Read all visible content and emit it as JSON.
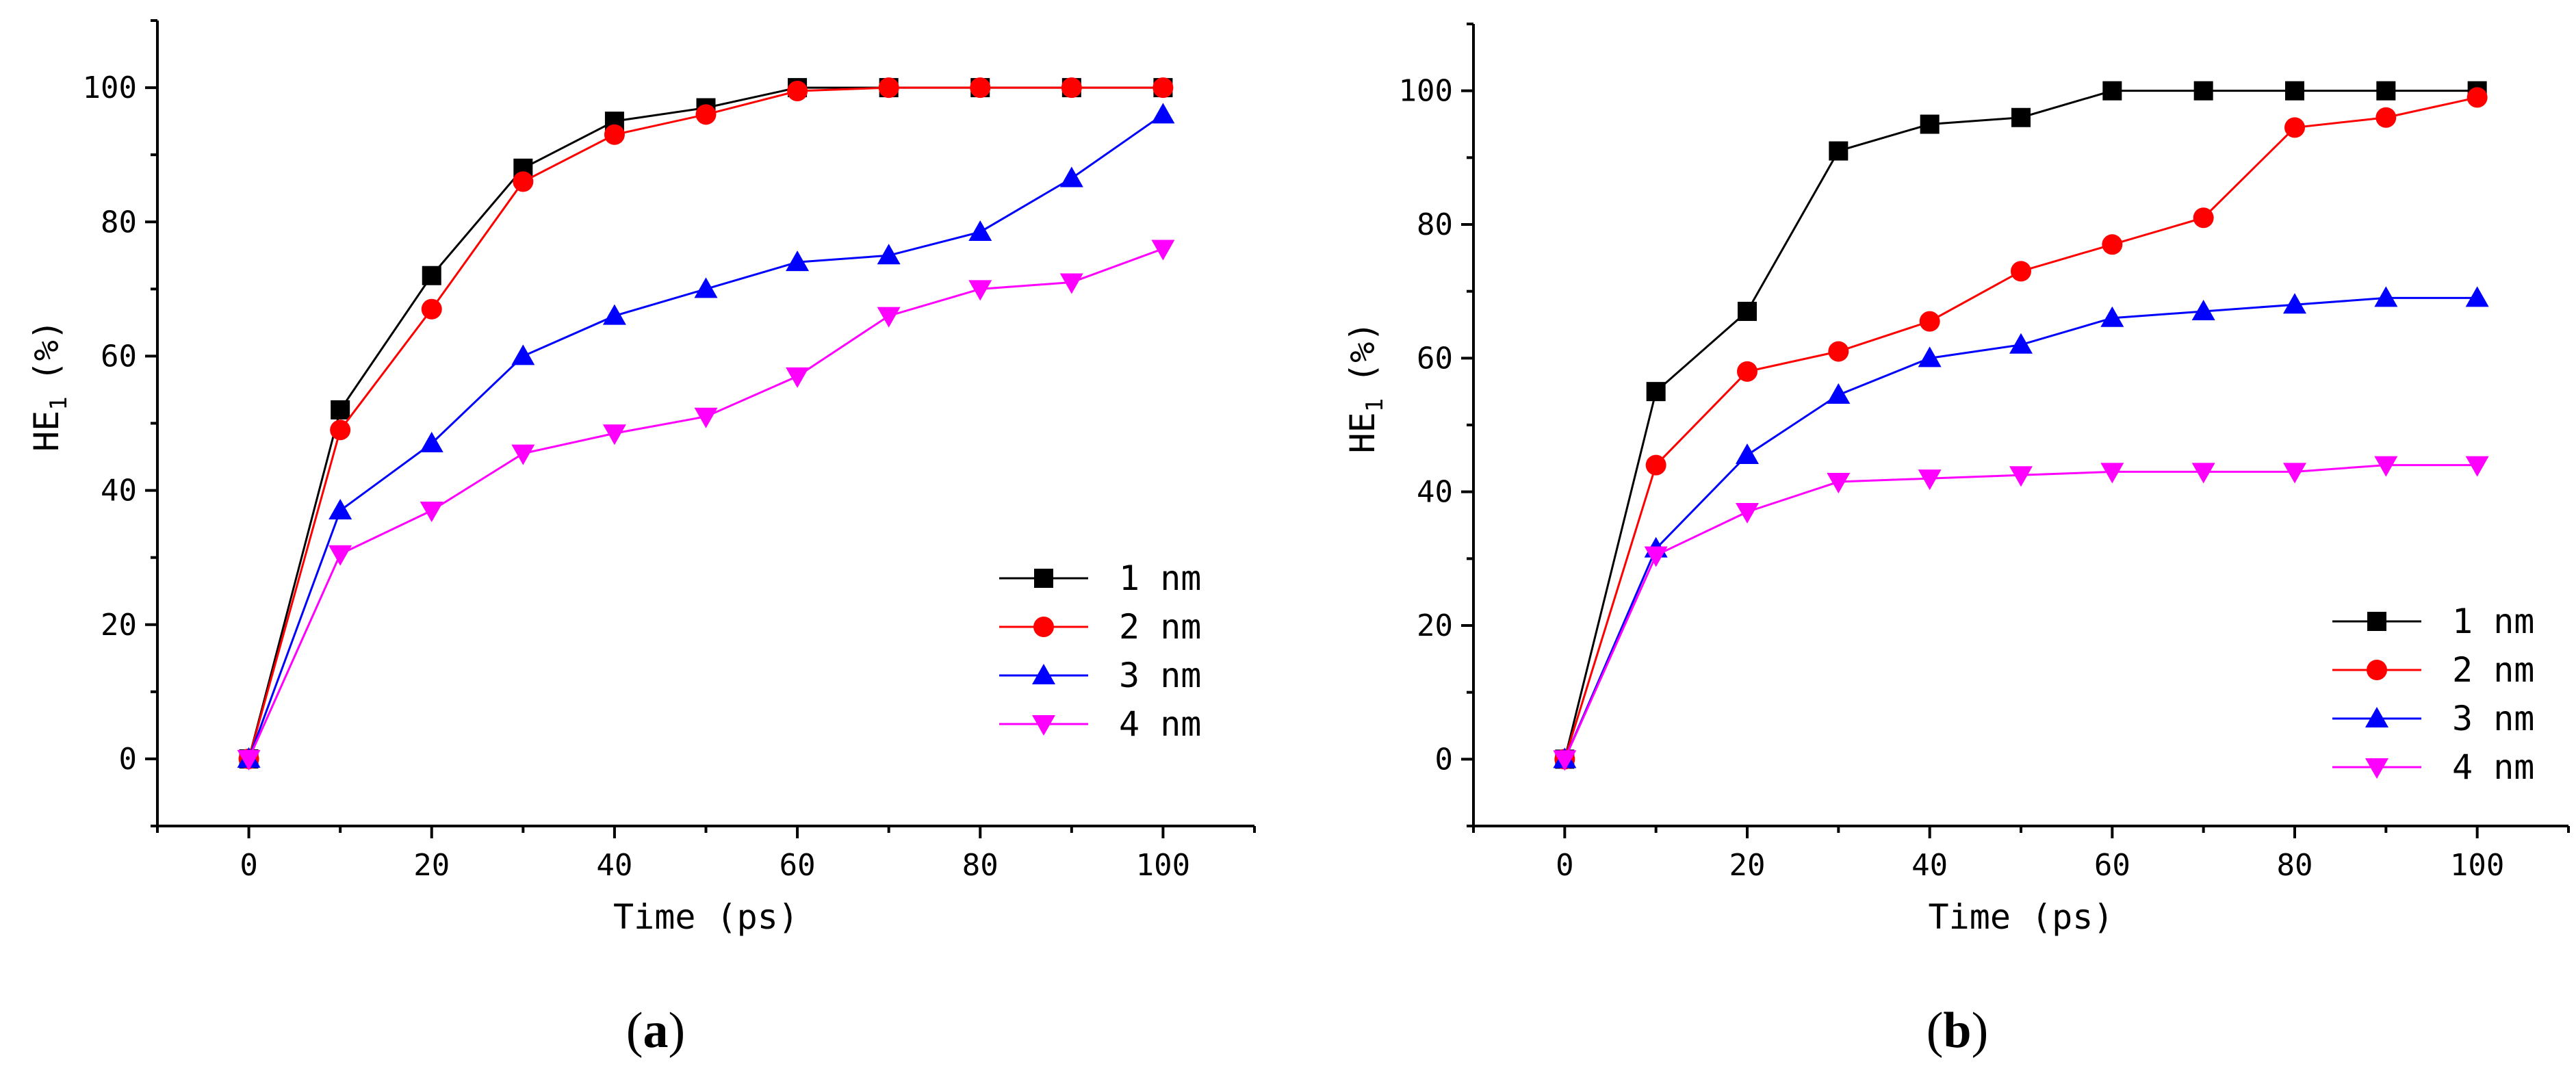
{
  "chart_data": [
    {
      "type": "line",
      "panel_label": "a",
      "title": "",
      "xlabel": "Time (ps)",
      "ylabel_main": "HE",
      "ylabel_sub": "1",
      "ylabel_unit": "(%)",
      "xlim": [
        -10,
        110
      ],
      "ylim": [
        -10,
        110
      ],
      "xticks": [
        0,
        20,
        40,
        60,
        80,
        100
      ],
      "yticks": [
        0,
        20,
        40,
        60,
        80,
        100
      ],
      "legend_position": "lower-right",
      "x": [
        0,
        10,
        20,
        30,
        40,
        50,
        60,
        70,
        80,
        90,
        100
      ],
      "series": [
        {
          "name": "1 nm",
          "color": "#000000",
          "marker": "square",
          "values": [
            0,
            52,
            72,
            88,
            95,
            97,
            100,
            100,
            100,
            100,
            100
          ]
        },
        {
          "name": "2 nm",
          "color": "#ff0000",
          "marker": "circle",
          "values": [
            0,
            49,
            67,
            86,
            93,
            96,
            99.5,
            100,
            100,
            100,
            100
          ]
        },
        {
          "name": "3 nm",
          "color": "#0000ff",
          "marker": "triangle-up",
          "values": [
            0,
            37,
            47,
            60,
            66,
            70,
            74,
            75,
            78.5,
            86.5,
            96
          ]
        },
        {
          "name": "4 nm",
          "color": "#ff00ff",
          "marker": "triangle-down",
          "values": [
            0,
            30.5,
            37,
            45.5,
            48.5,
            51,
            57,
            66,
            70,
            71,
            76
          ]
        }
      ]
    },
    {
      "type": "line",
      "panel_label": "b",
      "title": "",
      "xlabel": "Time (ps)",
      "ylabel_main": "HE",
      "ylabel_sub": "1",
      "ylabel_unit": "(%)",
      "xlim": [
        -10,
        110
      ],
      "ylim": [
        -10,
        110
      ],
      "xticks": [
        0,
        20,
        40,
        60,
        80,
        100
      ],
      "yticks": [
        0,
        20,
        40,
        60,
        80,
        100
      ],
      "legend_position": "lower-right",
      "x": [
        0,
        10,
        20,
        30,
        40,
        50,
        60,
        70,
        80,
        90,
        100
      ],
      "series": [
        {
          "name": "1 nm",
          "color": "#000000",
          "marker": "square",
          "values": [
            0,
            55,
            67,
            91,
            95,
            96,
            100,
            100,
            100,
            100,
            100
          ]
        },
        {
          "name": "2 nm",
          "color": "#ff0000",
          "marker": "circle",
          "values": [
            0,
            44,
            58,
            61,
            65.5,
            73,
            77,
            81,
            94.5,
            96,
            99
          ]
        },
        {
          "name": "3 nm",
          "color": "#0000ff",
          "marker": "triangle-up",
          "values": [
            0,
            31.5,
            45.5,
            54.5,
            60,
            62,
            66,
            67,
            68,
            69,
            69
          ]
        },
        {
          "name": "4 nm",
          "color": "#ff00ff",
          "marker": "triangle-down",
          "values": [
            0,
            30.5,
            37,
            41.5,
            42,
            42.5,
            43,
            43,
            43,
            44,
            44
          ]
        }
      ]
    }
  ]
}
